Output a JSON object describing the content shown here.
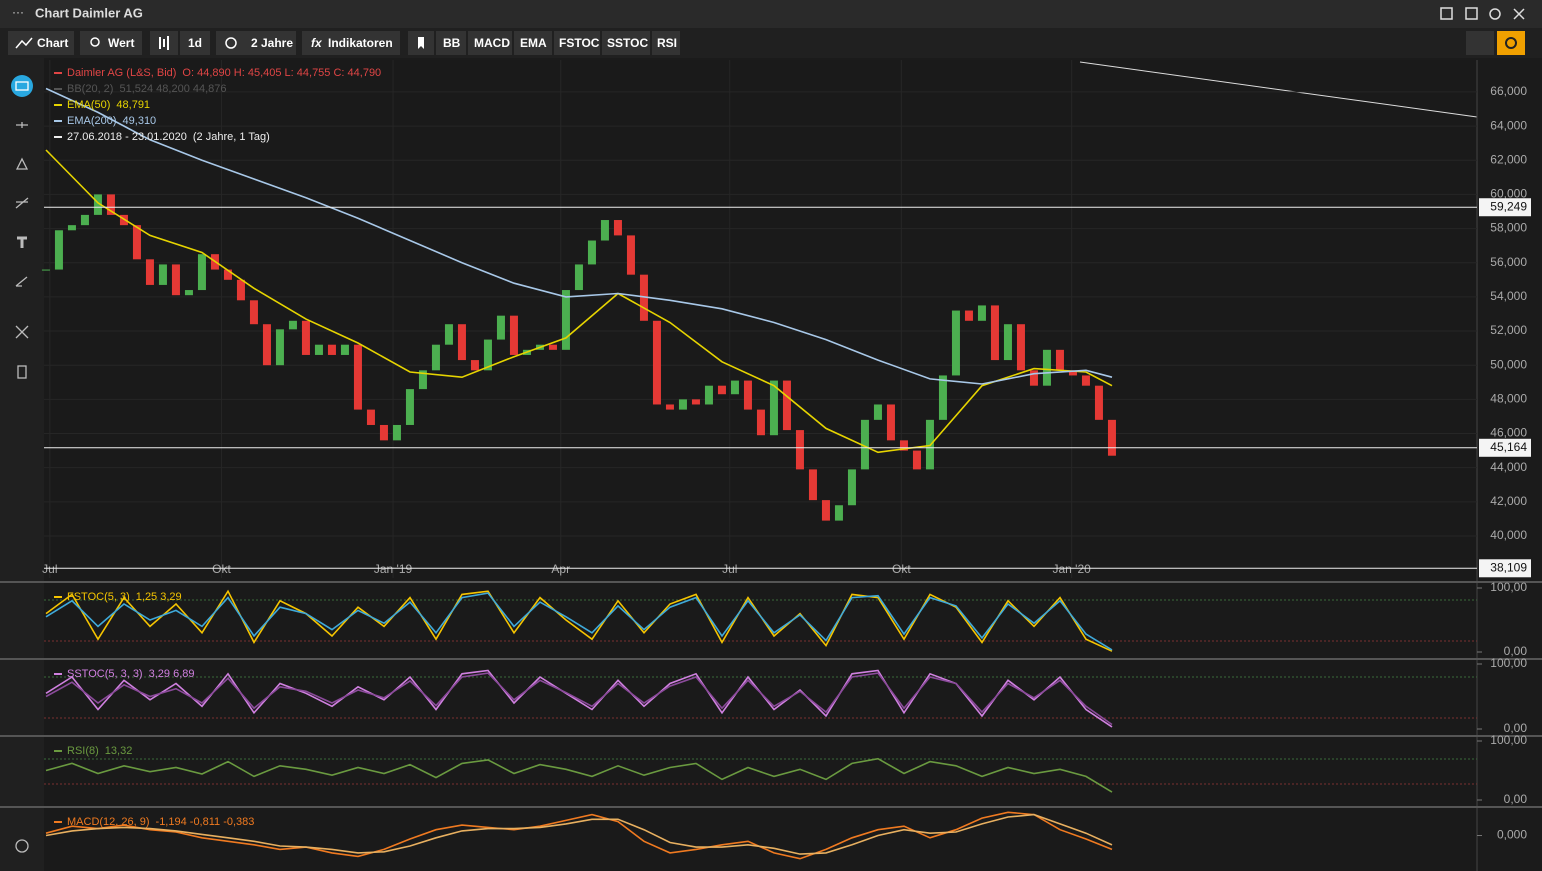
{
  "window": {
    "title": "Chart Daimler AG"
  },
  "toolbar": {
    "buttons": [
      "Chart",
      "Wert",
      "1d",
      "2 Jahre",
      "Indikatoren",
      "BB",
      "MACD",
      "EMA",
      "FSTOC",
      "SSTOC",
      "RSI"
    ]
  },
  "chart_data": [
    {
      "type": "price",
      "legend": [
        {
          "name": "Daimler AG (L&S, Bid)",
          "text": "O: 44,890  H: 45,405  L: 44,755  C: 44,790"
        },
        {
          "name": "BB(20, 2)",
          "text": "51,524  48,200  44,876"
        },
        {
          "name": "EMA(50)",
          "text": "48,791"
        },
        {
          "name": "EMA(200)",
          "text": "49,310"
        },
        {
          "name": "27.06.2018 - 23.01.2020",
          "text": "(2 Jahre, 1 Tag)"
        }
      ],
      "xlim": [
        -0.15,
        110.08
      ],
      "xticks": [
        {
          "value": 0.3,
          "label": "Jul"
        },
        {
          "value": 13.5,
          "label": "Okt"
        },
        {
          "value": 26.7,
          "label": "Jan '19"
        },
        {
          "value": 39.6,
          "label": "Apr"
        },
        {
          "value": 52.6,
          "label": "Jul"
        },
        {
          "value": 65.8,
          "label": "Okt"
        },
        {
          "value": 78.9,
          "label": "Jan '20"
        }
      ],
      "ylim": [
        37.54,
        67.87
      ],
      "yticks": [
        {
          "value": 40,
          "label": "40,000"
        },
        {
          "value": 42,
          "label": "42,000"
        },
        {
          "value": 44,
          "label": "44,000"
        },
        {
          "value": 46,
          "label": "46,000"
        },
        {
          "value": 48,
          "label": "48,000"
        },
        {
          "value": 50,
          "label": "50,000"
        },
        {
          "value": 52,
          "label": "52,000"
        },
        {
          "value": 54,
          "label": "54,000"
        },
        {
          "value": 56,
          "label": "56,000"
        },
        {
          "value": 58,
          "label": "58,000"
        },
        {
          "value": 60,
          "label": "60,000"
        },
        {
          "value": 62,
          "label": "62,000"
        },
        {
          "value": 64,
          "label": "64,000"
        },
        {
          "value": 66,
          "label": "66,000"
        }
      ],
      "levels": [
        {
          "value": 59.249,
          "label": "59,249"
        },
        {
          "value": 45.164,
          "label": "45,164"
        },
        {
          "value": 38.109,
          "label": "38,109"
        }
      ],
      "series": [
        {
          "style": "candle",
          "up_color": "#4caf50",
          "down_color": "#e53935",
          "x": [
            0,
            1,
            2,
            3,
            4,
            5,
            6,
            7,
            8,
            9,
            10,
            11,
            12,
            13,
            14,
            15,
            16,
            17,
            18,
            19,
            20,
            21,
            22,
            23,
            24,
            25,
            26,
            27,
            28,
            29,
            30,
            31,
            32,
            33,
            34,
            35,
            36,
            37,
            38,
            39,
            40,
            41,
            42,
            43,
            44,
            45,
            46,
            47,
            48,
            49,
            50,
            51,
            52,
            53,
            54,
            55,
            56,
            57,
            58,
            59,
            60,
            61,
            62,
            63,
            64,
            65,
            66,
            67,
            68,
            69,
            70,
            71,
            72,
            73,
            74,
            75,
            76,
            77,
            78,
            79,
            80,
            81,
            82
          ],
          "values": [
            55.6,
            57.9,
            58.2,
            58.8,
            60.0,
            58.8,
            58.2,
            56.2,
            54.7,
            55.9,
            54.1,
            54.4,
            56.5,
            55.6,
            55.0,
            53.8,
            52.4,
            50.0,
            52.1,
            52.6,
            50.6,
            51.2,
            50.6,
            51.2,
            47.4,
            46.5,
            45.6,
            46.5,
            48.6,
            49.7,
            51.2,
            52.4,
            50.3,
            49.7,
            51.5,
            52.9,
            50.6,
            50.9,
            51.2,
            50.9,
            54.4,
            55.9,
            57.3,
            58.5,
            57.6,
            55.3,
            52.6,
            47.7,
            47.4,
            48.0,
            47.7,
            48.8,
            48.3,
            49.1,
            47.4,
            45.9,
            49.1,
            46.2,
            43.9,
            42.1,
            40.9,
            41.8,
            43.9,
            46.8,
            47.7,
            45.6,
            45.0,
            43.9,
            46.8,
            49.4,
            53.2,
            52.6,
            53.5,
            50.3,
            52.4,
            49.7,
            48.8,
            50.9,
            49.7,
            49.4,
            48.8,
            46.8,
            44.7
          ]
        },
        {
          "style": "line",
          "color": "#e6d400",
          "x": [
            0,
            4,
            8,
            12,
            16,
            20,
            24,
            28,
            32,
            36,
            40,
            44,
            48,
            52,
            56,
            60,
            64,
            68,
            72,
            76,
            80,
            82
          ],
          "values": [
            62.6,
            59.5,
            57.6,
            56.6,
            54.5,
            52.7,
            51.3,
            49.6,
            49.3,
            50.5,
            51.6,
            54.2,
            52.5,
            50.2,
            48.8,
            46.3,
            44.9,
            45.3,
            48.8,
            49.8,
            49.6,
            48.8
          ]
        },
        {
          "style": "line",
          "color": "#a8c8e8",
          "x": [
            0,
            4,
            8,
            12,
            16,
            20,
            24,
            28,
            32,
            36,
            40,
            44,
            48,
            52,
            56,
            60,
            64,
            68,
            72,
            76,
            80,
            82
          ],
          "values": [
            66.2,
            64.8,
            63.2,
            62.0,
            60.9,
            59.8,
            58.6,
            57.3,
            56.0,
            54.8,
            54.0,
            54.2,
            53.8,
            53.3,
            52.5,
            51.5,
            50.3,
            49.2,
            48.9,
            49.5,
            49.7,
            49.3
          ]
        }
      ]
    },
    {
      "type": "oscillator",
      "label": {
        "name": "FSTOC(5, 3)",
        "text": "1,25  3,29"
      },
      "ylim": [
        0,
        100
      ],
      "yticks": [
        {
          "value": 100,
          "label": "100,00"
        },
        {
          "value": 0,
          "label": "0,00"
        }
      ],
      "series": [
        {
          "color": "#f5c400",
          "x": [
            0,
            2,
            4,
            6,
            8,
            10,
            12,
            14,
            16,
            18,
            20,
            22,
            24,
            26,
            28,
            30,
            32,
            34,
            36,
            38,
            40,
            42,
            44,
            46,
            48,
            50,
            52,
            54,
            56,
            58,
            60,
            62,
            64,
            66,
            68,
            70,
            72,
            74,
            76,
            78,
            80,
            82
          ],
          "values": [
            60,
            90,
            20,
            85,
            40,
            75,
            30,
            95,
            15,
            80,
            60,
            25,
            70,
            40,
            85,
            20,
            90,
            95,
            30,
            85,
            50,
            20,
            80,
            30,
            75,
            90,
            15,
            85,
            25,
            60,
            10,
            90,
            85,
            20,
            90,
            70,
            15,
            80,
            40,
            85,
            20,
            1.25
          ]
        },
        {
          "color": "#3fa9d9",
          "x": [
            0,
            2,
            4,
            6,
            8,
            10,
            12,
            14,
            16,
            18,
            20,
            22,
            24,
            26,
            28,
            30,
            32,
            34,
            36,
            38,
            40,
            42,
            44,
            46,
            48,
            50,
            52,
            54,
            56,
            58,
            60,
            62,
            64,
            66,
            68,
            70,
            72,
            74,
            76,
            78,
            80,
            82
          ],
          "values": [
            55,
            80,
            40,
            75,
            50,
            65,
            40,
            85,
            25,
            70,
            60,
            35,
            65,
            45,
            78,
            30,
            85,
            92,
            40,
            78,
            55,
            30,
            72,
            35,
            70,
            85,
            25,
            80,
            30,
            58,
            18,
            85,
            88,
            28,
            85,
            72,
            22,
            75,
            45,
            80,
            28,
            3.29
          ]
        }
      ]
    },
    {
      "type": "oscillator",
      "label": {
        "name": "SSTOC(5, 3, 3)",
        "text": "3,29  6,89"
      },
      "ylim": [
        0,
        100
      ],
      "yticks": [
        {
          "value": 100,
          "label": "100,00"
        },
        {
          "value": 0,
          "label": "0,00"
        }
      ],
      "series": [
        {
          "color": "#d080e0",
          "x": [
            0,
            2,
            4,
            6,
            8,
            10,
            12,
            14,
            16,
            18,
            20,
            22,
            24,
            26,
            28,
            30,
            32,
            34,
            36,
            38,
            40,
            42,
            44,
            46,
            48,
            50,
            52,
            54,
            56,
            58,
            60,
            62,
            64,
            66,
            68,
            70,
            72,
            74,
            76,
            78,
            80,
            82
          ],
          "values": [
            55,
            80,
            30,
            75,
            45,
            70,
            35,
            85,
            25,
            70,
            55,
            35,
            65,
            45,
            80,
            30,
            85,
            90,
            40,
            80,
            55,
            30,
            75,
            35,
            70,
            85,
            25,
            80,
            30,
            60,
            20,
            85,
            90,
            25,
            85,
            70,
            20,
            75,
            45,
            80,
            30,
            3.29
          ]
        },
        {
          "color": "#8a4a9a",
          "x": [
            0,
            2,
            4,
            6,
            8,
            10,
            12,
            14,
            16,
            18,
            20,
            22,
            24,
            26,
            28,
            30,
            32,
            34,
            36,
            38,
            40,
            42,
            44,
            46,
            48,
            50,
            52,
            54,
            56,
            58,
            60,
            62,
            64,
            66,
            68,
            70,
            72,
            74,
            76,
            78,
            80,
            82
          ],
          "values": [
            50,
            72,
            40,
            68,
            50,
            62,
            40,
            78,
            32,
            65,
            58,
            40,
            60,
            48,
            74,
            36,
            80,
            86,
            45,
            75,
            56,
            35,
            70,
            40,
            66,
            80,
            32,
            75,
            35,
            58,
            26,
            80,
            86,
            32,
            80,
            70,
            26,
            70,
            48,
            75,
            35,
            6.89
          ]
        }
      ]
    },
    {
      "type": "oscillator",
      "label": {
        "name": "RSI(8)",
        "text": "13,32"
      },
      "ylim": [
        0,
        100
      ],
      "yticks": [
        {
          "value": 100,
          "label": "100,00"
        },
        {
          "value": 0,
          "label": "0,00"
        }
      ],
      "series": [
        {
          "color": "#6a9a40",
          "x": [
            0,
            2,
            4,
            6,
            8,
            10,
            12,
            14,
            16,
            18,
            20,
            22,
            24,
            26,
            28,
            30,
            32,
            34,
            36,
            38,
            40,
            42,
            44,
            46,
            48,
            50,
            52,
            54,
            56,
            58,
            60,
            62,
            64,
            66,
            68,
            70,
            72,
            74,
            76,
            78,
            80,
            82
          ],
          "values": [
            50,
            62,
            45,
            58,
            48,
            55,
            44,
            65,
            40,
            58,
            52,
            42,
            55,
            45,
            60,
            38,
            62,
            68,
            45,
            60,
            52,
            40,
            58,
            42,
            55,
            62,
            35,
            55,
            40,
            52,
            35,
            62,
            70,
            45,
            65,
            58,
            40,
            55,
            45,
            52,
            40,
            13.32
          ]
        }
      ]
    },
    {
      "type": "oscillator",
      "label": {
        "name": "MACD(12, 26, 9)",
        "text": "-1,194  -0,811  -0,383"
      },
      "ylim": [
        -2.8,
        2.2
      ],
      "yticks": [
        {
          "value": 0,
          "label": "0,000"
        }
      ],
      "series": [
        {
          "color": "#f07a20",
          "x": [
            0,
            2,
            4,
            6,
            8,
            10,
            12,
            14,
            16,
            18,
            20,
            22,
            24,
            26,
            28,
            30,
            32,
            34,
            36,
            38,
            40,
            42,
            44,
            46,
            48,
            50,
            52,
            54,
            56,
            58,
            60,
            62,
            64,
            66,
            68,
            70,
            72,
            74,
            76,
            78,
            80,
            82
          ],
          "values": [
            0.2,
            0.8,
            0.6,
            0.9,
            0.5,
            0.3,
            -0.2,
            -0.5,
            -0.8,
            -1.2,
            -1.0,
            -1.5,
            -1.8,
            -1.2,
            -0.3,
            0.5,
            0.9,
            0.7,
            0.5,
            0.8,
            1.3,
            1.8,
            1.2,
            -0.5,
            -1.5,
            -1.2,
            -0.8,
            -0.5,
            -1.5,
            -2.0,
            -1.2,
            -0.2,
            0.5,
            0.8,
            -0.2,
            0.5,
            1.5,
            2.0,
            1.8,
            0.5,
            -0.3,
            -1.194
          ]
        },
        {
          "color": "#e8b060",
          "x": [
            0,
            2,
            4,
            6,
            8,
            10,
            12,
            14,
            16,
            18,
            20,
            22,
            24,
            26,
            28,
            30,
            32,
            34,
            36,
            38,
            40,
            42,
            44,
            46,
            48,
            50,
            52,
            54,
            56,
            58,
            60,
            62,
            64,
            66,
            68,
            70,
            72,
            74,
            76,
            78,
            80,
            82
          ],
          "values": [
            0.0,
            0.4,
            0.6,
            0.7,
            0.6,
            0.4,
            0.1,
            -0.2,
            -0.5,
            -0.9,
            -1.0,
            -1.2,
            -1.5,
            -1.4,
            -0.9,
            -0.2,
            0.4,
            0.6,
            0.6,
            0.7,
            1.0,
            1.4,
            1.4,
            0.5,
            -0.6,
            -1.0,
            -1.0,
            -0.8,
            -1.1,
            -1.6,
            -1.5,
            -0.8,
            0.0,
            0.5,
            0.2,
            0.3,
            1.0,
            1.6,
            1.8,
            1.0,
            0.2,
            -0.811
          ]
        }
      ]
    }
  ]
}
